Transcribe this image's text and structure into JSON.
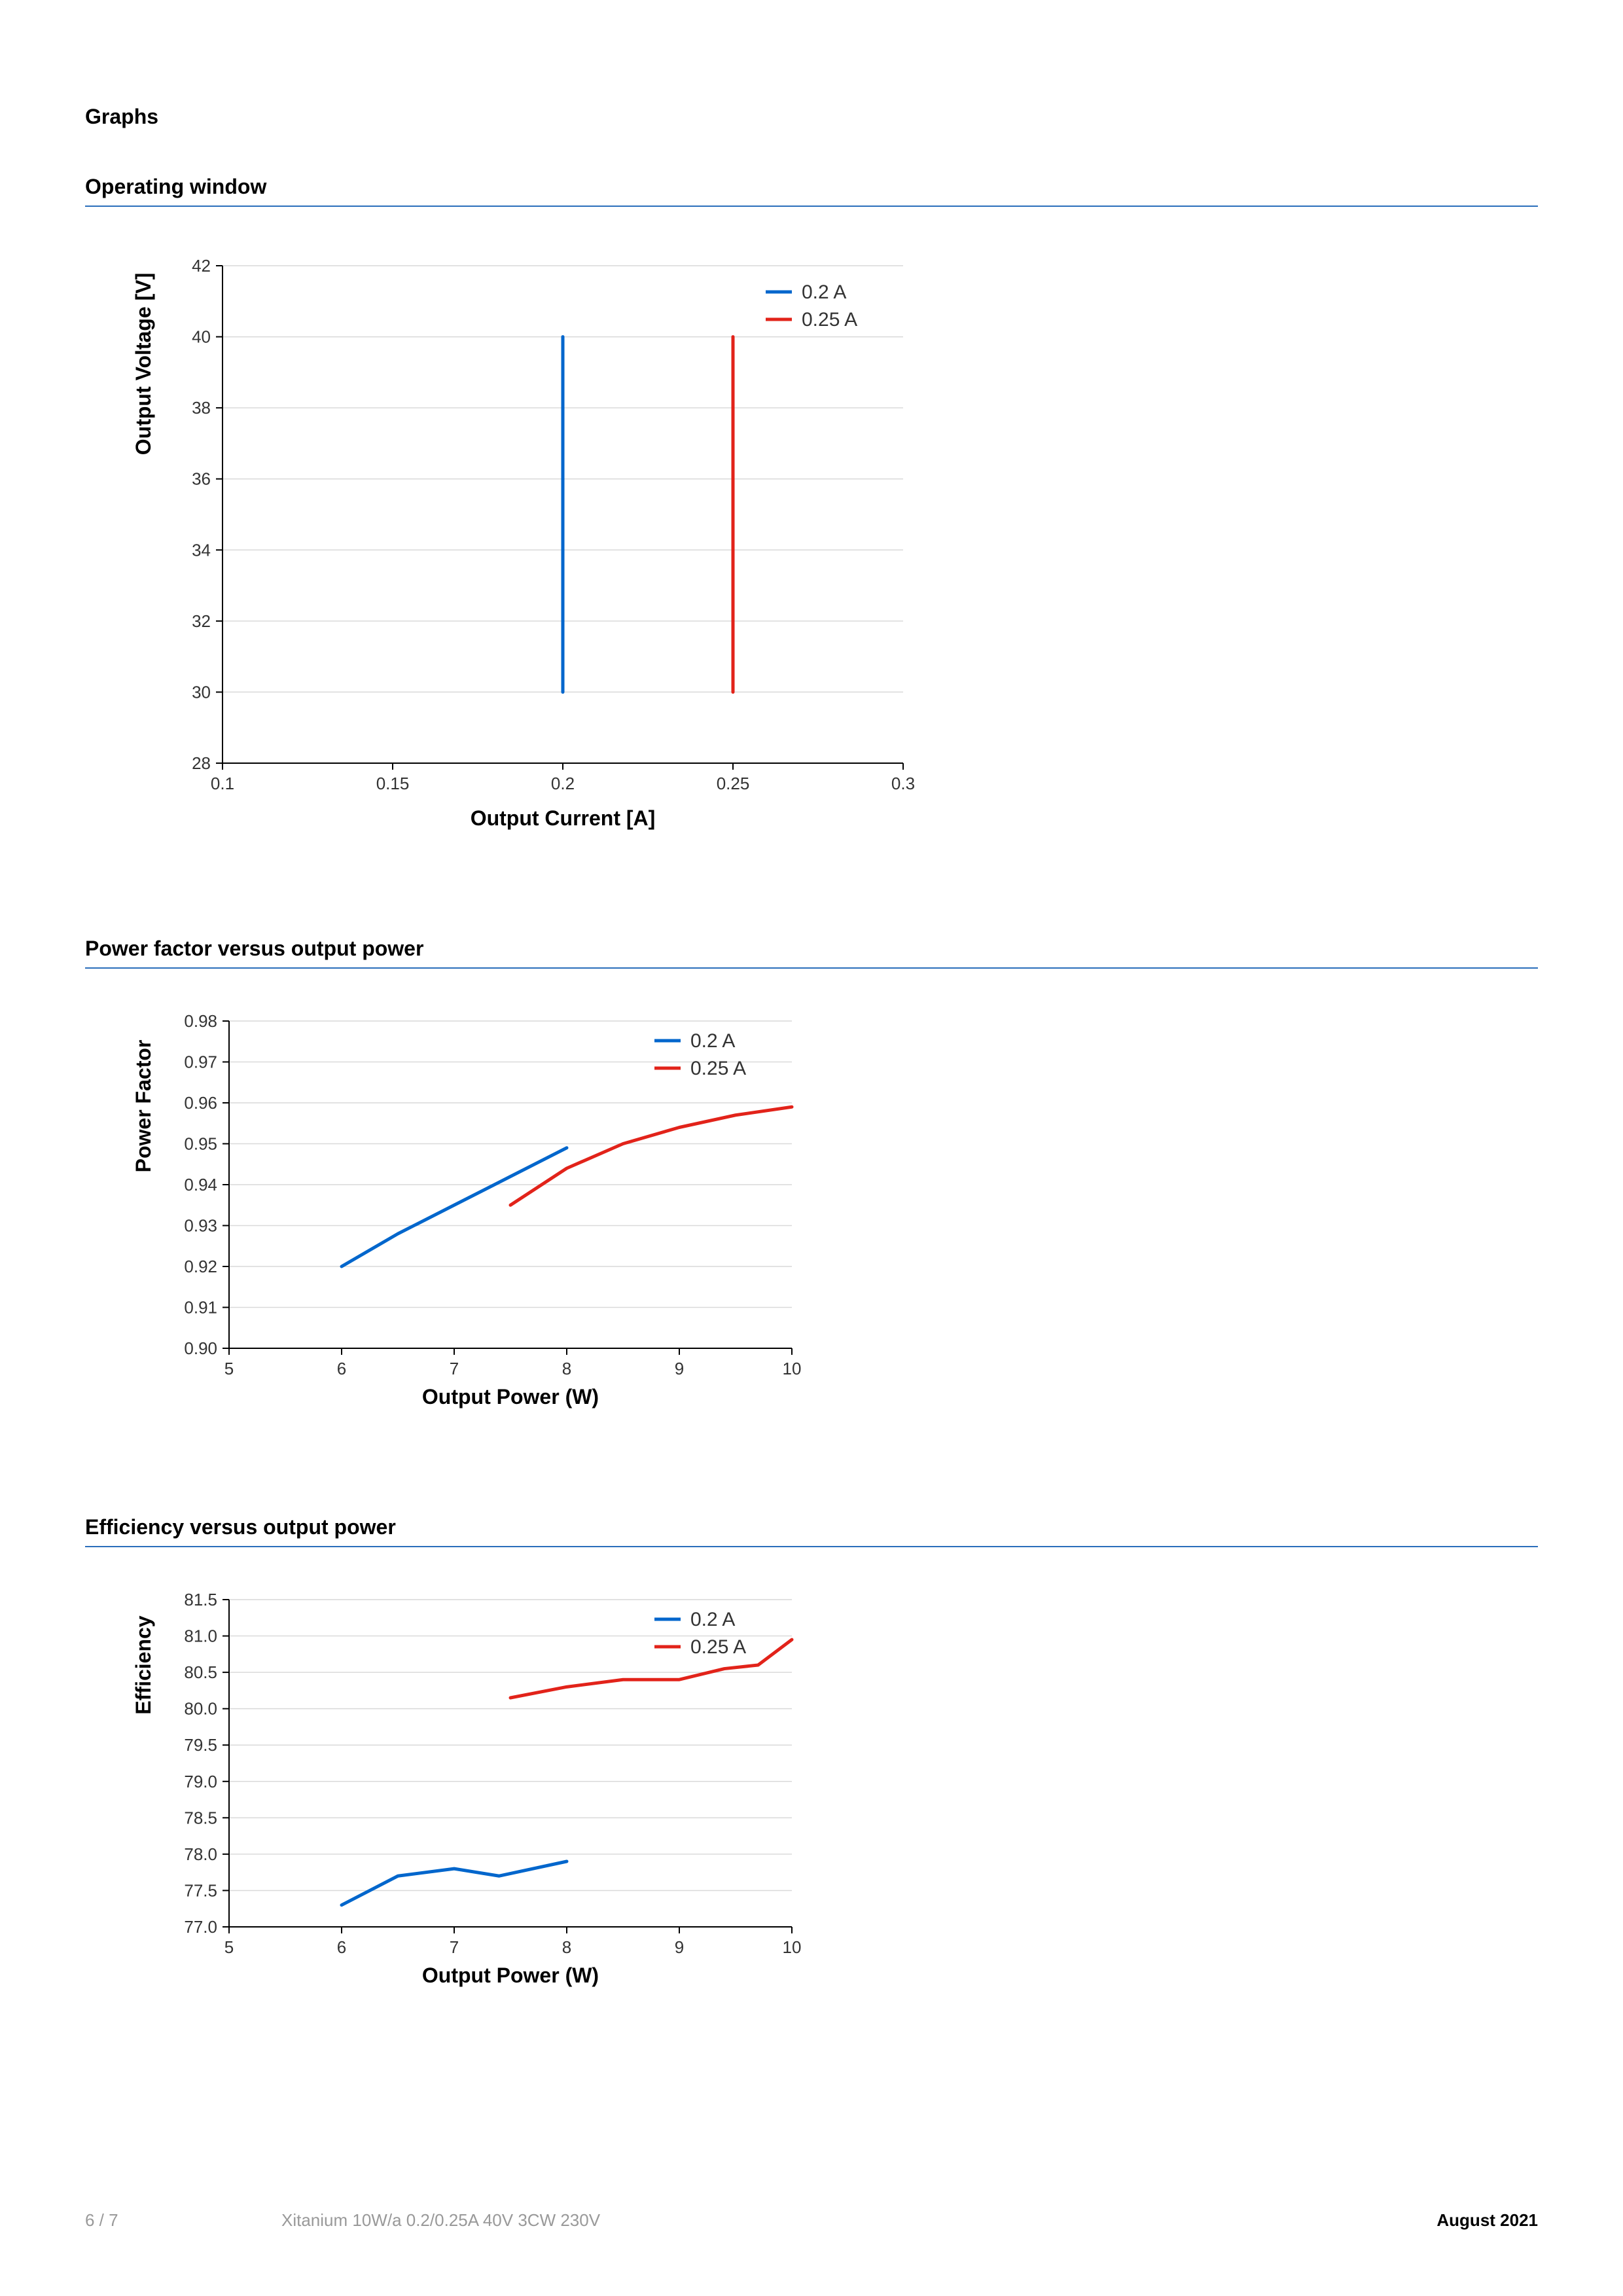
{
  "page": {
    "main_title": "Graphs",
    "footer": {
      "page_num": "6 / 7",
      "product": "Xitanium 10W/a 0.2/0.25A 40V 3CW 230V",
      "date": "August 2021"
    }
  },
  "colors": {
    "blue": "#0066cc",
    "red": "#e2231a",
    "grid": "#d9d9d9",
    "rule": "#2a6ebb",
    "text": "#333333"
  },
  "legend_labels": {
    "a": "0.2 A",
    "b": "0.25 A"
  },
  "chart1": {
    "title": "Operating window",
    "xlabel": "Output Current [A]",
    "ylabel": "Output Voltage [V]",
    "xlim": [
      0.1,
      0.3
    ],
    "ylim": [
      28,
      42
    ],
    "xticks": [
      0.1,
      0.15,
      0.2,
      0.25,
      0.3
    ],
    "yticks": [
      28,
      30,
      32,
      34,
      36,
      38,
      40,
      42
    ],
    "series_a": [
      [
        0.2,
        30
      ],
      [
        0.2,
        40
      ]
    ],
    "series_b": [
      [
        0.25,
        30
      ],
      [
        0.25,
        40
      ]
    ]
  },
  "chart2": {
    "title": "Power factor versus output power",
    "xlabel": "Output Power (W)",
    "ylabel": "Power Factor",
    "xlim": [
      5,
      10
    ],
    "ylim": [
      0.9,
      0.98
    ],
    "xticks": [
      5,
      6,
      7,
      8,
      9,
      10
    ],
    "yticks": [
      0.9,
      0.91,
      0.92,
      0.93,
      0.94,
      0.95,
      0.96,
      0.97,
      0.98
    ],
    "series_a": [
      [
        6,
        0.92
      ],
      [
        6.5,
        0.928
      ],
      [
        7,
        0.935
      ],
      [
        7.5,
        0.942
      ],
      [
        8,
        0.949
      ]
    ],
    "series_b": [
      [
        7.5,
        0.935
      ],
      [
        8,
        0.944
      ],
      [
        8.5,
        0.95
      ],
      [
        9,
        0.954
      ],
      [
        9.5,
        0.957
      ],
      [
        10,
        0.959
      ]
    ]
  },
  "chart3": {
    "title": "Efficiency versus output power",
    "xlabel": "Output Power (W)",
    "ylabel": "Efficiency",
    "xlim": [
      5,
      10
    ],
    "ylim": [
      77.0,
      81.5
    ],
    "xticks": [
      5,
      6,
      7,
      8,
      9,
      10
    ],
    "yticks": [
      77.0,
      77.5,
      78.0,
      78.5,
      79.0,
      79.5,
      80.0,
      80.5,
      81.0,
      81.5
    ],
    "series_a": [
      [
        6.0,
        77.3
      ],
      [
        6.5,
        77.7
      ],
      [
        7.0,
        77.8
      ],
      [
        7.4,
        77.7
      ],
      [
        8.0,
        77.9
      ]
    ],
    "series_b": [
      [
        7.5,
        80.15
      ],
      [
        8.0,
        80.3
      ],
      [
        8.5,
        80.4
      ],
      [
        9.0,
        80.4
      ],
      [
        9.4,
        80.55
      ],
      [
        9.7,
        80.6
      ],
      [
        10.0,
        80.95
      ]
    ]
  }
}
